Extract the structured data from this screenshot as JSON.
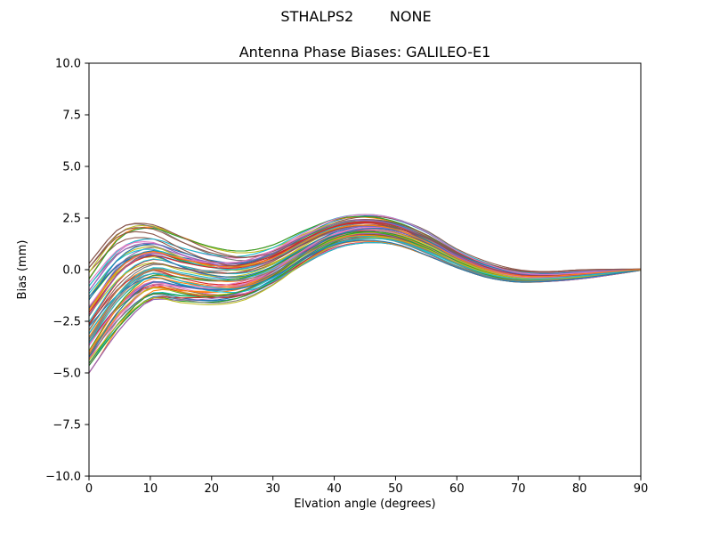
{
  "chart_data": {
    "type": "line",
    "suptitle": "STHALPS2        NONE",
    "title": "Antenna Phase Biases: GALILEO-E1",
    "xlabel": "Elvation angle (degrees)",
    "ylabel": "Bias (mm)",
    "xlim": [
      0,
      90
    ],
    "ylim": [
      -10,
      10
    ],
    "xticks": [
      0,
      10,
      20,
      30,
      40,
      50,
      60,
      70,
      80,
      90
    ],
    "xtick_labels": [
      "0",
      "10",
      "20",
      "30",
      "40",
      "50",
      "60",
      "70",
      "80",
      "90"
    ],
    "yticks": [
      -10,
      -7.5,
      -5,
      -2.5,
      0,
      2.5,
      5,
      7.5,
      10
    ],
    "ytick_labels": [
      "−10.0",
      "−7.5",
      "−5.0",
      "−2.5",
      "0.0",
      "2.5",
      "5.0",
      "7.5",
      "10.0"
    ],
    "grid": false,
    "legend": "none",
    "layout": {
      "background": "#ffffff",
      "axis_color": "#000000",
      "line_width": 1.1
    },
    "ensemble": {
      "description": "Band of many antenna phase-bias curves vs elevation; values below are the band center and half-width (mm) at each knot elevation (deg). Individual lines span center ± half_spread and all converge to 0 at 90 deg.",
      "n_lines": 72,
      "x_knots": [
        0,
        5,
        10,
        15,
        20,
        25,
        30,
        35,
        40,
        45,
        50,
        55,
        60,
        65,
        70,
        75,
        80,
        85,
        90
      ],
      "center": [
        -2.35,
        -0.45,
        0.35,
        0.0,
        -0.3,
        -0.3,
        0.2,
        1.05,
        1.75,
        2.0,
        1.85,
        1.3,
        0.55,
        0.0,
        -0.3,
        -0.33,
        -0.23,
        -0.12,
        0.0
      ],
      "half_spread": [
        2.65,
        2.45,
        1.85,
        1.6,
        1.4,
        1.2,
        1.0,
        0.85,
        0.75,
        0.7,
        0.65,
        0.6,
        0.45,
        0.38,
        0.3,
        0.24,
        0.22,
        0.14,
        0.03
      ],
      "colors": [
        "#1f77b4",
        "#ff7f0e",
        "#2ca02c",
        "#d62728",
        "#9467bd",
        "#8c564b",
        "#e377c2",
        "#7f7f7f",
        "#bcbd22",
        "#17becf"
      ]
    }
  }
}
